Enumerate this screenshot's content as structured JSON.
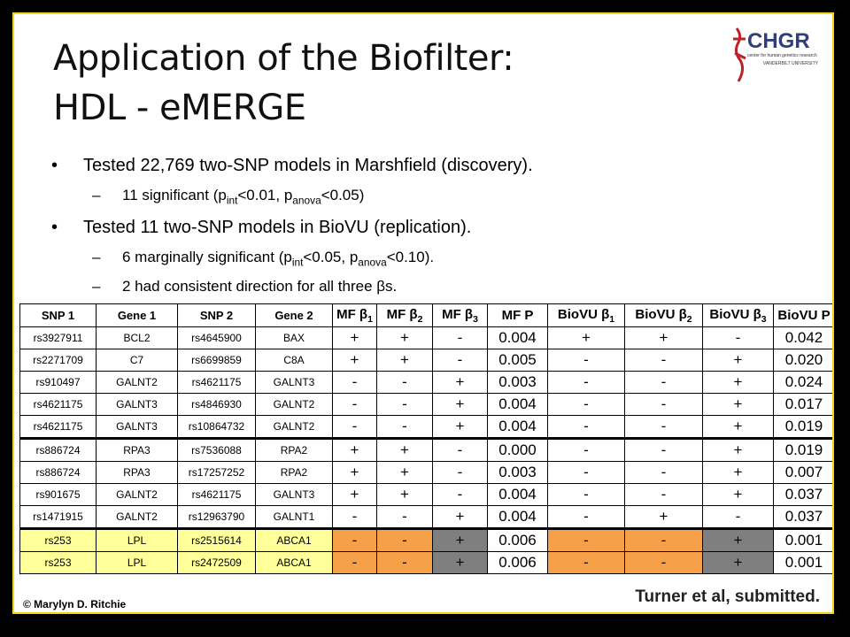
{
  "header": {
    "title_lines": [
      "Application of the Biofilter:",
      "HDL - eMERGE"
    ],
    "logo": {
      "name": "CHGR",
      "subtitle": "center for human genetics research",
      "affiliation": "VANDERBILT UNIVERSITY"
    }
  },
  "bullets": [
    {
      "level": 1,
      "parts": [
        {
          "text": "Tested 22,769 two-SNP models in Marshfield (discovery)."
        }
      ]
    },
    {
      "level": 2,
      "parts": [
        {
          "text": "11 significant (p"
        },
        {
          "sub": "int"
        },
        {
          "text": "<0.01, p"
        },
        {
          "sub": "anova"
        },
        {
          "text": "<0.05)"
        }
      ]
    },
    {
      "level": 1,
      "parts": [
        {
          "text": "Tested 11 two-SNP models in BioVU (replication)."
        }
      ]
    },
    {
      "level": 2,
      "parts": [
        {
          "text": "6 marginally significant (p"
        },
        {
          "sub": "int"
        },
        {
          "text": "<0.05, p"
        },
        {
          "sub": "anova"
        },
        {
          "text": "<0.10)."
        }
      ]
    },
    {
      "level": 2,
      "parts": [
        {
          "text": "2 had consistent direction for all three βs."
        }
      ]
    }
  ],
  "table": {
    "columns": [
      [
        {
          "text": "SNP 1"
        }
      ],
      [
        {
          "text": "Gene 1"
        }
      ],
      [
        {
          "text": "SNP 2"
        }
      ],
      [
        {
          "text": "Gene 2"
        }
      ],
      [
        {
          "text": "MF β"
        },
        {
          "sub": "1"
        }
      ],
      [
        {
          "text": "MF β"
        },
        {
          "sub": "2"
        }
      ],
      [
        {
          "text": "MF β"
        },
        {
          "sub": "3"
        }
      ],
      [
        {
          "text": "MF P"
        }
      ],
      [
        {
          "text": "BioVU β"
        },
        {
          "sub": "1"
        }
      ],
      [
        {
          "text": "BioVU β"
        },
        {
          "sub": "2"
        }
      ],
      [
        {
          "text": "BioVU β"
        },
        {
          "sub": "3"
        }
      ],
      [
        {
          "text": "BioVU P"
        }
      ]
    ],
    "rows": [
      [
        "rs3927911",
        "BCL2",
        "rs4645900",
        "BAX",
        "+",
        "+",
        "-",
        "0.004",
        "+",
        "+",
        "-",
        "0.042"
      ],
      [
        "rs2271709",
        "C7",
        "rs6699859",
        "C8A",
        "+",
        "+",
        "-",
        "0.005",
        "-",
        "-",
        "+",
        "0.020"
      ],
      [
        "rs910497",
        "GALNT2",
        "rs4621175",
        "GALNT3",
        "-",
        "-",
        "+",
        "0.003",
        "-",
        "-",
        "+",
        "0.024"
      ],
      [
        "rs4621175",
        "GALNT3",
        "rs4846930",
        "GALNT2",
        "-",
        "-",
        "+",
        "0.004",
        "-",
        "-",
        "+",
        "0.017"
      ],
      [
        "rs4621175",
        "GALNT3",
        "rs10864732",
        "GALNT2",
        "-",
        "-",
        "+",
        "0.004",
        "-",
        "-",
        "+",
        "0.019"
      ],
      [
        "rs886724",
        "RPA3",
        "rs7536088",
        "RPA2",
        "+",
        "+",
        "-",
        "0.000",
        "-",
        "-",
        "+",
        "0.019"
      ],
      [
        "rs886724",
        "RPA3",
        "rs17257252",
        "RPA2",
        "+",
        "+",
        "-",
        "0.003",
        "-",
        "-",
        "+",
        "0.007"
      ],
      [
        "rs901675",
        "GALNT2",
        "rs4621175",
        "GALNT3",
        "+",
        "+",
        "-",
        "0.004",
        "-",
        "-",
        "+",
        "0.037"
      ],
      [
        "rs1471915",
        "GALNT2",
        "rs12963790",
        "GALNT1",
        "-",
        "-",
        "+",
        "0.004",
        "-",
        "+",
        "-",
        "0.037"
      ],
      [
        "rs253",
        "LPL",
        "rs2515614",
        "ABCA1",
        "-",
        "-",
        "+",
        "0.006",
        "-",
        "-",
        "+",
        "0.001"
      ],
      [
        "rs253",
        "LPL",
        "rs2472509",
        "ABCA1",
        "-",
        "-",
        "+",
        "0.006",
        "-",
        "-",
        "+",
        "0.001"
      ]
    ]
  },
  "footer": {
    "copyright": "© Marylyn D. Ritchie",
    "citation": "Turner et al, submitted."
  }
}
